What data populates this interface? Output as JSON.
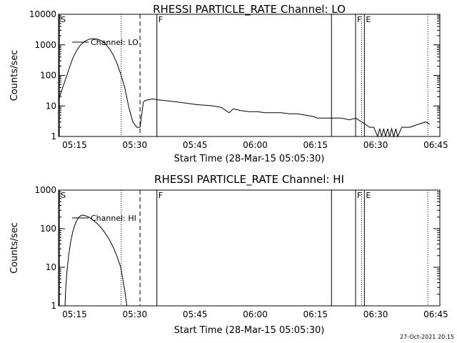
{
  "chart_data": [
    {
      "type": "line",
      "title": "RHESSI PARTICLE_RATE Channel: LO",
      "xlabel": "Start Time (28-Mar-15 05:05:30)",
      "ylabel": "Counts/sec",
      "yscale": "log",
      "ylim": [
        1,
        10000
      ],
      "xlim": [
        5.5,
        100.5
      ],
      "x_units": "minutes since 05:05:30",
      "x_ticks": [
        {
          "value": 9.5,
          "label": "05:15"
        },
        {
          "value": 24.5,
          "label": "05:30"
        },
        {
          "value": 39.5,
          "label": "05:45"
        },
        {
          "value": 54.5,
          "label": "06:00"
        },
        {
          "value": 69.5,
          "label": "06:15"
        },
        {
          "value": 84.5,
          "label": "06:30"
        },
        {
          "value": 99.5,
          "label": "06:45"
        }
      ],
      "y_ticks": [
        {
          "value": 1,
          "label": "1"
        },
        {
          "value": 10,
          "label": "10"
        },
        {
          "value": 100,
          "label": "100"
        },
        {
          "value": 1000,
          "label": "1000"
        },
        {
          "value": 10000,
          "label": "10000"
        }
      ],
      "legend": [
        {
          "label": "Channel: LO",
          "placement": "top-left"
        }
      ],
      "markers": [
        {
          "x": 5.7,
          "style": "solid",
          "flag": "S"
        },
        {
          "x": 21.1,
          "style": "dotted",
          "flag": ""
        },
        {
          "x": 25.8,
          "style": "dashed",
          "flag": ""
        },
        {
          "x": 30.0,
          "style": "solid",
          "flag": "F"
        },
        {
          "x": 73.5,
          "style": "solid",
          "flag": ""
        },
        {
          "x": 79.5,
          "style": "solid",
          "flag": "F"
        },
        {
          "x": 81.0,
          "style": "dotted",
          "flag": ""
        },
        {
          "x": 81.7,
          "style": "solid",
          "flag": "E"
        },
        {
          "x": 97.5,
          "style": "dotted",
          "flag": ""
        }
      ],
      "series": [
        {
          "name": "Channel: LO",
          "points": [
            [
              5.5,
              15
            ],
            [
              6,
              25
            ],
            [
              7,
              60
            ],
            [
              8,
              150
            ],
            [
              9,
              350
            ],
            [
              10,
              650
            ],
            [
              11,
              1000
            ],
            [
              12,
              1300
            ],
            [
              13,
              1500
            ],
            [
              14,
              1600
            ],
            [
              15,
              1550
            ],
            [
              16,
              1400
            ],
            [
              17,
              1150
            ],
            [
              18,
              800
            ],
            [
              19,
              500
            ],
            [
              20,
              260
            ],
            [
              21,
              110
            ],
            [
              22,
              40
            ],
            [
              23,
              9
            ],
            [
              24,
              3
            ],
            [
              25,
              2
            ],
            [
              25.8,
              2
            ],
            [
              26.2,
              5
            ],
            [
              26.6,
              13
            ],
            [
              27,
              15
            ],
            [
              28,
              16
            ],
            [
              29,
              17
            ],
            [
              30,
              16
            ],
            [
              32,
              15
            ],
            [
              34,
              14
            ],
            [
              36,
              13
            ],
            [
              38,
              12
            ],
            [
              40,
              11
            ],
            [
              42,
              10.5
            ],
            [
              44,
              10
            ],
            [
              46,
              9
            ],
            [
              48,
              6
            ],
            [
              49,
              8
            ],
            [
              51,
              7
            ],
            [
              53,
              6.5
            ],
            [
              55,
              6.5
            ],
            [
              57,
              6
            ],
            [
              59,
              6
            ],
            [
              61,
              6
            ],
            [
              63,
              5.5
            ],
            [
              65,
              5.5
            ],
            [
              67,
              5
            ],
            [
              69,
              4.5
            ],
            [
              70,
              4
            ],
            [
              72,
              4
            ],
            [
              74,
              4
            ],
            [
              76,
              4
            ],
            [
              78,
              3.5
            ],
            [
              79.5,
              4
            ],
            [
              81,
              3
            ],
            [
              82,
              2.5
            ],
            [
              83,
              2
            ],
            [
              84,
              2
            ],
            [
              85,
              1
            ],
            [
              85.5,
              1.8
            ],
            [
              86,
              1
            ],
            [
              86.5,
              1.8
            ],
            [
              87,
              1
            ],
            [
              87.5,
              1.8
            ],
            [
              88,
              1
            ],
            [
              88.5,
              1.8
            ],
            [
              89,
              1
            ],
            [
              89.5,
              1.8
            ],
            [
              90,
              1
            ],
            [
              91,
              2
            ],
            [
              93,
              2
            ],
            [
              95,
              2.5
            ],
            [
              97,
              3
            ],
            [
              98,
              2.5
            ]
          ]
        }
      ]
    },
    {
      "type": "line",
      "title": "RHESSI PARTICLE_RATE Channel: HI",
      "xlabel": "Start Time (28-Mar-15 05:05:30)",
      "ylabel": "Counts/sec",
      "yscale": "log",
      "ylim": [
        1,
        1000
      ],
      "xlim": [
        5.5,
        100.5
      ],
      "x_units": "minutes since 05:05:30",
      "x_ticks": [
        {
          "value": 9.5,
          "label": "05:15"
        },
        {
          "value": 24.5,
          "label": "05:30"
        },
        {
          "value": 39.5,
          "label": "05:45"
        },
        {
          "value": 54.5,
          "label": "06:00"
        },
        {
          "value": 69.5,
          "label": "06:15"
        },
        {
          "value": 84.5,
          "label": "06:30"
        },
        {
          "value": 99.5,
          "label": "06:45"
        }
      ],
      "y_ticks": [
        {
          "value": 1,
          "label": "1"
        },
        {
          "value": 10,
          "label": "10"
        },
        {
          "value": 100,
          "label": "100"
        },
        {
          "value": 1000,
          "label": "1000"
        }
      ],
      "legend": [
        {
          "label": "Channel: HI",
          "placement": "top-left"
        }
      ],
      "markers": [
        {
          "x": 5.7,
          "style": "solid",
          "flag": "S"
        },
        {
          "x": 21.1,
          "style": "dotted",
          "flag": ""
        },
        {
          "x": 25.8,
          "style": "dashed",
          "flag": ""
        },
        {
          "x": 30.0,
          "style": "solid",
          "flag": "F"
        },
        {
          "x": 73.5,
          "style": "solid",
          "flag": ""
        },
        {
          "x": 79.5,
          "style": "solid",
          "flag": "F"
        },
        {
          "x": 81.0,
          "style": "dotted",
          "flag": ""
        },
        {
          "x": 81.7,
          "style": "solid",
          "flag": "E"
        },
        {
          "x": 97.5,
          "style": "dotted",
          "flag": ""
        }
      ],
      "series": [
        {
          "name": "Channel: HI",
          "points": [
            [
              7.1,
              1
            ],
            [
              7.3,
              3
            ],
            [
              7.6,
              8
            ],
            [
              8,
              20
            ],
            [
              8.5,
              45
            ],
            [
              9,
              80
            ],
            [
              9.5,
              120
            ],
            [
              10,
              160
            ],
            [
              10.5,
              195
            ],
            [
              11,
              215
            ],
            [
              11.5,
              225
            ],
            [
              12,
              220
            ],
            [
              13,
              200
            ],
            [
              14,
              170
            ],
            [
              15,
              140
            ],
            [
              16,
              110
            ],
            [
              17,
              80
            ],
            [
              18,
              55
            ],
            [
              19,
              35
            ],
            [
              20,
              20
            ],
            [
              21,
              10
            ],
            [
              21.5,
              5
            ],
            [
              22,
              2.5
            ],
            [
              22.5,
              1
            ]
          ]
        }
      ]
    }
  ],
  "footer": {
    "timestamp": "27-Oct-2021 20:15"
  }
}
